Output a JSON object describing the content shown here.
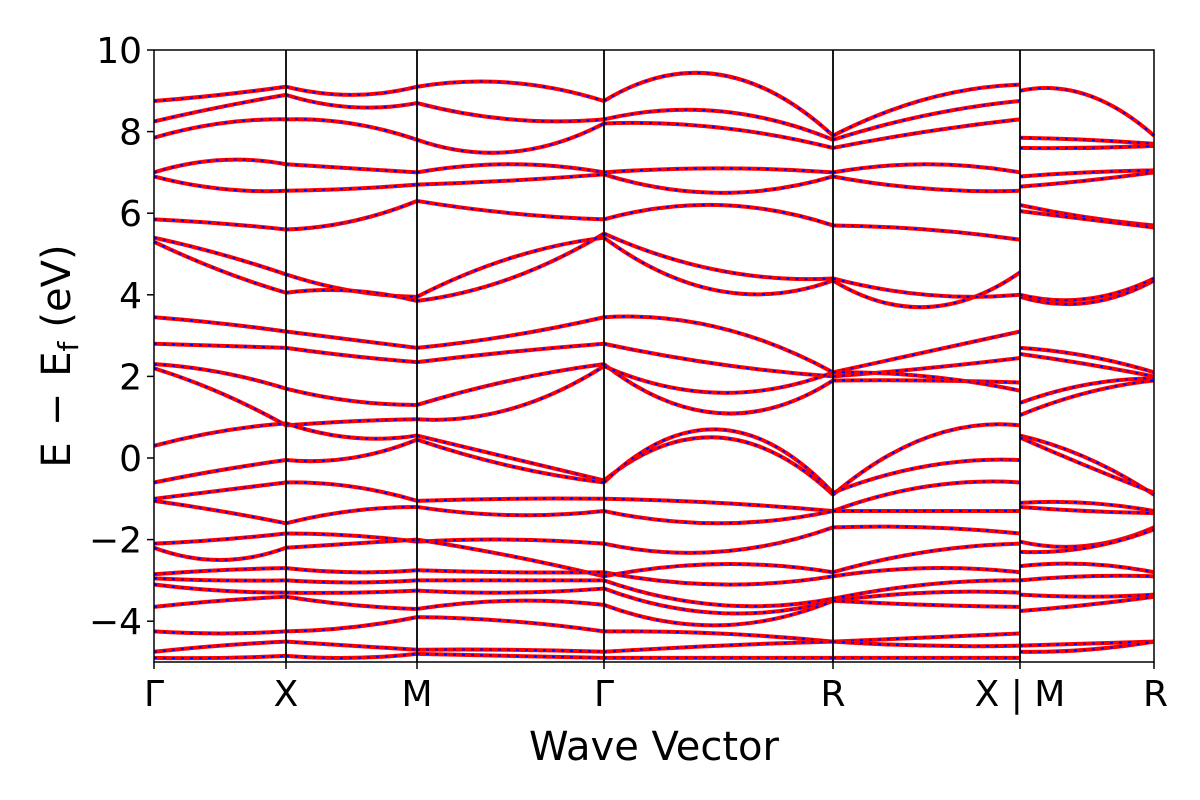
{
  "chart_data": {
    "type": "line",
    "xlabel": "Wave Vector",
    "ylabel_parts": {
      "E": "E",
      "minus": "−",
      "Ef": "E",
      "sub": "f",
      "unit": "(eV)"
    },
    "ylim": [
      -5,
      10
    ],
    "yticks": [
      {
        "v": 10,
        "label": "10"
      },
      {
        "v": 8,
        "label": "8"
      },
      {
        "v": 6,
        "label": "6"
      },
      {
        "v": 4,
        "label": "4"
      },
      {
        "v": 2,
        "label": "2"
      },
      {
        "v": 0,
        "label": "0"
      },
      {
        "v": -2,
        "label": "−2"
      },
      {
        "v": -4,
        "label": "−4"
      }
    ],
    "xrange": [
      0,
      1
    ],
    "kpoints": [
      {
        "label": "Γ",
        "k": 0.0
      },
      {
        "label": "X",
        "k": 0.132
      },
      {
        "label": "M",
        "k": 0.263
      },
      {
        "label": "Γ",
        "k": 0.45
      },
      {
        "label": "R",
        "k": 0.679
      },
      {
        "label": "X | M",
        "k": 0.866
      },
      {
        "label": "R",
        "k": 1.0
      }
    ],
    "vlines": [
      0.132,
      0.263,
      0.45,
      0.679,
      0.866
    ],
    "series_style": {
      "line_color": "#ff0000",
      "dash_color": "#0000ff"
    },
    "segments": [
      {
        "from": 0.0,
        "to": 0.132,
        "bands": [
          [
            8.75,
            8.9,
            9.1
          ],
          [
            8.25,
            8.6,
            8.9
          ],
          [
            7.85,
            8.2,
            8.3
          ],
          [
            7.0,
            7.3,
            7.2
          ],
          [
            6.9,
            6.6,
            6.55
          ],
          [
            5.85,
            5.75,
            5.6
          ],
          [
            5.4,
            5.0,
            4.5
          ],
          [
            5.3,
            4.6,
            4.05
          ],
          [
            3.45,
            3.3,
            3.1
          ],
          [
            2.8,
            2.75,
            2.7
          ],
          [
            2.3,
            2.1,
            1.7
          ],
          [
            2.2,
            1.6,
            0.8
          ],
          [
            0.3,
            0.65,
            0.85
          ],
          [
            -0.6,
            -0.3,
            -0.05
          ],
          [
            -1.0,
            -0.8,
            -0.6
          ],
          [
            -1.05,
            -1.3,
            -1.6
          ],
          [
            -2.1,
            -2.0,
            -1.85
          ],
          [
            -2.2,
            -2.5,
            -2.2
          ],
          [
            -2.85,
            -2.75,
            -2.7
          ],
          [
            -2.95,
            -3.0,
            -3.0
          ],
          [
            -3.1,
            -3.25,
            -3.3
          ],
          [
            -3.65,
            -3.5,
            -3.4
          ],
          [
            -4.25,
            -4.3,
            -4.25
          ],
          [
            -4.75,
            -4.6,
            -4.5
          ],
          [
            -4.9,
            -4.9,
            -4.85
          ]
        ]
      },
      {
        "from": 0.132,
        "to": 0.263,
        "bands": [
          [
            9.1,
            8.9,
            9.1
          ],
          [
            8.9,
            8.6,
            8.7
          ],
          [
            8.3,
            8.2,
            7.8
          ],
          [
            7.2,
            7.1,
            7.0
          ],
          [
            6.55,
            6.6,
            6.7
          ],
          [
            5.6,
            5.8,
            6.3
          ],
          [
            4.5,
            4.1,
            3.95
          ],
          [
            4.05,
            4.1,
            3.85
          ],
          [
            3.1,
            2.9,
            2.7
          ],
          [
            2.7,
            2.5,
            2.35
          ],
          [
            1.7,
            1.4,
            1.3
          ],
          [
            0.8,
            0.9,
            0.95
          ],
          [
            0.85,
            0.5,
            0.55
          ],
          [
            -0.05,
            0.0,
            0.45
          ],
          [
            -0.6,
            -0.7,
            -1.05
          ],
          [
            -1.6,
            -1.3,
            -1.2
          ],
          [
            -1.85,
            -1.9,
            -2.05
          ],
          [
            -2.2,
            -2.1,
            -2.0
          ],
          [
            -2.7,
            -2.8,
            -2.75
          ],
          [
            -3.0,
            -3.05,
            -3.0
          ],
          [
            -3.3,
            -3.3,
            -3.25
          ],
          [
            -3.4,
            -3.6,
            -3.7
          ],
          [
            -4.25,
            -4.15,
            -3.9
          ],
          [
            -4.5,
            -4.6,
            -4.7
          ],
          [
            -4.85,
            -4.9,
            -4.8
          ]
        ]
      },
      {
        "from": 0.263,
        "to": 0.45,
        "bands": [
          [
            9.1,
            9.2,
            8.75
          ],
          [
            8.7,
            8.3,
            8.3
          ],
          [
            7.8,
            7.5,
            8.2
          ],
          [
            7.0,
            7.2,
            7.0
          ],
          [
            6.7,
            6.8,
            6.95
          ],
          [
            6.3,
            6.0,
            5.85
          ],
          [
            3.95,
            4.9,
            5.4
          ],
          [
            3.85,
            4.4,
            5.5
          ],
          [
            2.7,
            3.0,
            3.45
          ],
          [
            2.35,
            2.6,
            2.8
          ],
          [
            1.3,
            1.9,
            2.3
          ],
          [
            0.95,
            1.2,
            2.25
          ],
          [
            0.55,
            0.0,
            -0.55
          ],
          [
            0.45,
            -0.2,
            -0.6
          ],
          [
            -1.05,
            -1.0,
            -1.0
          ],
          [
            -1.2,
            -1.4,
            -1.3
          ],
          [
            -2.05,
            -2.0,
            -2.1
          ],
          [
            -2.0,
            -2.4,
            -2.9
          ],
          [
            -2.75,
            -2.8,
            -2.8
          ],
          [
            -3.0,
            -3.0,
            -3.0
          ],
          [
            -3.25,
            -3.3,
            -3.2
          ],
          [
            -3.7,
            -3.5,
            -3.6
          ],
          [
            -3.9,
            -4.0,
            -4.25
          ],
          [
            -4.7,
            -4.7,
            -4.75
          ],
          [
            -4.8,
            -4.85,
            -4.9
          ]
        ]
      },
      {
        "from": 0.45,
        "to": 0.679,
        "bands": [
          [
            8.75,
            9.4,
            7.9
          ],
          [
            8.3,
            8.5,
            7.8
          ],
          [
            8.2,
            8.1,
            7.6
          ],
          [
            7.0,
            7.1,
            7.0
          ],
          [
            6.95,
            6.5,
            6.9
          ],
          [
            5.85,
            6.2,
            5.7
          ],
          [
            5.4,
            4.1,
            4.35
          ],
          [
            5.5,
            4.6,
            4.4
          ],
          [
            3.45,
            3.2,
            2.1
          ],
          [
            2.8,
            2.3,
            2.0
          ],
          [
            2.3,
            1.1,
            1.9
          ],
          [
            2.25,
            1.6,
            2.1
          ],
          [
            -0.55,
            0.5,
            -0.9
          ],
          [
            -0.6,
            0.7,
            -0.85
          ],
          [
            -1.0,
            -1.1,
            -1.3
          ],
          [
            -1.3,
            -1.6,
            -1.3
          ],
          [
            -2.1,
            -2.3,
            -1.7
          ],
          [
            -2.9,
            -2.6,
            -2.8
          ],
          [
            -2.8,
            -3.1,
            -2.9
          ],
          [
            -3.0,
            -3.6,
            -3.45
          ],
          [
            -3.2,
            -3.8,
            -3.5
          ],
          [
            -3.6,
            -4.1,
            -3.5
          ],
          [
            -4.25,
            -4.3,
            -4.5
          ],
          [
            -4.75,
            -4.6,
            -4.5
          ],
          [
            -4.9,
            -4.9,
            -4.9
          ]
        ]
      },
      {
        "from": 0.679,
        "to": 0.866,
        "bands": [
          [
            7.9,
            8.8,
            9.15
          ],
          [
            7.8,
            8.4,
            8.75
          ],
          [
            7.6,
            8.0,
            8.3
          ],
          [
            7.0,
            7.2,
            7.0
          ],
          [
            6.9,
            6.6,
            6.55
          ],
          [
            5.7,
            5.6,
            5.35
          ],
          [
            4.35,
            3.7,
            4.55
          ],
          [
            4.4,
            4.0,
            4.0
          ],
          [
            2.1,
            2.6,
            3.1
          ],
          [
            2.0,
            2.2,
            2.45
          ],
          [
            1.9,
            1.9,
            1.85
          ],
          [
            2.1,
            2.0,
            1.65
          ],
          [
            -0.9,
            0.5,
            0.8
          ],
          [
            -0.85,
            -0.2,
            -0.05
          ],
          [
            -1.3,
            -0.7,
            -0.6
          ],
          [
            -1.3,
            -1.3,
            -1.3
          ],
          [
            -1.7,
            -1.7,
            -1.85
          ],
          [
            -2.8,
            -2.3,
            -2.1
          ],
          [
            -2.9,
            -2.7,
            -2.8
          ],
          [
            -3.45,
            -3.1,
            -3.0
          ],
          [
            -3.5,
            -3.3,
            -3.3
          ],
          [
            -3.5,
            -3.6,
            -3.65
          ],
          [
            -4.5,
            -4.4,
            -4.3
          ],
          [
            -4.5,
            -4.6,
            -4.6
          ],
          [
            -4.9,
            -4.9,
            -4.9
          ]
        ]
      },
      {
        "from": 0.866,
        "to": 1.0,
        "bands": [
          [
            9.0,
            8.9,
            7.9
          ],
          [
            7.85,
            7.8,
            7.7
          ],
          [
            7.6,
            7.6,
            7.65
          ],
          [
            6.9,
            7.0,
            7.05
          ],
          [
            6.65,
            6.8,
            7.0
          ],
          [
            6.2,
            5.9,
            5.7
          ],
          [
            6.05,
            5.85,
            5.65
          ],
          [
            3.95,
            3.8,
            4.35
          ],
          [
            4.0,
            3.9,
            4.4
          ],
          [
            2.7,
            2.5,
            2.1
          ],
          [
            2.55,
            2.3,
            2.0
          ],
          [
            1.35,
            1.8,
            1.95
          ],
          [
            1.05,
            1.6,
            1.9
          ],
          [
            0.55,
            0.0,
            -0.9
          ],
          [
            0.5,
            -0.2,
            -0.85
          ],
          [
            -1.1,
            -1.1,
            -1.3
          ],
          [
            -1.2,
            -1.3,
            -1.35
          ],
          [
            -2.05,
            -2.15,
            -1.7
          ],
          [
            -2.3,
            -2.2,
            -1.75
          ],
          [
            -2.65,
            -2.6,
            -2.8
          ],
          [
            -3.0,
            -2.9,
            -2.9
          ],
          [
            -3.35,
            -3.4,
            -3.35
          ],
          [
            -3.75,
            -3.6,
            -3.4
          ],
          [
            -4.6,
            -4.55,
            -4.5
          ],
          [
            -4.75,
            -4.7,
            -4.5
          ]
        ]
      }
    ]
  }
}
